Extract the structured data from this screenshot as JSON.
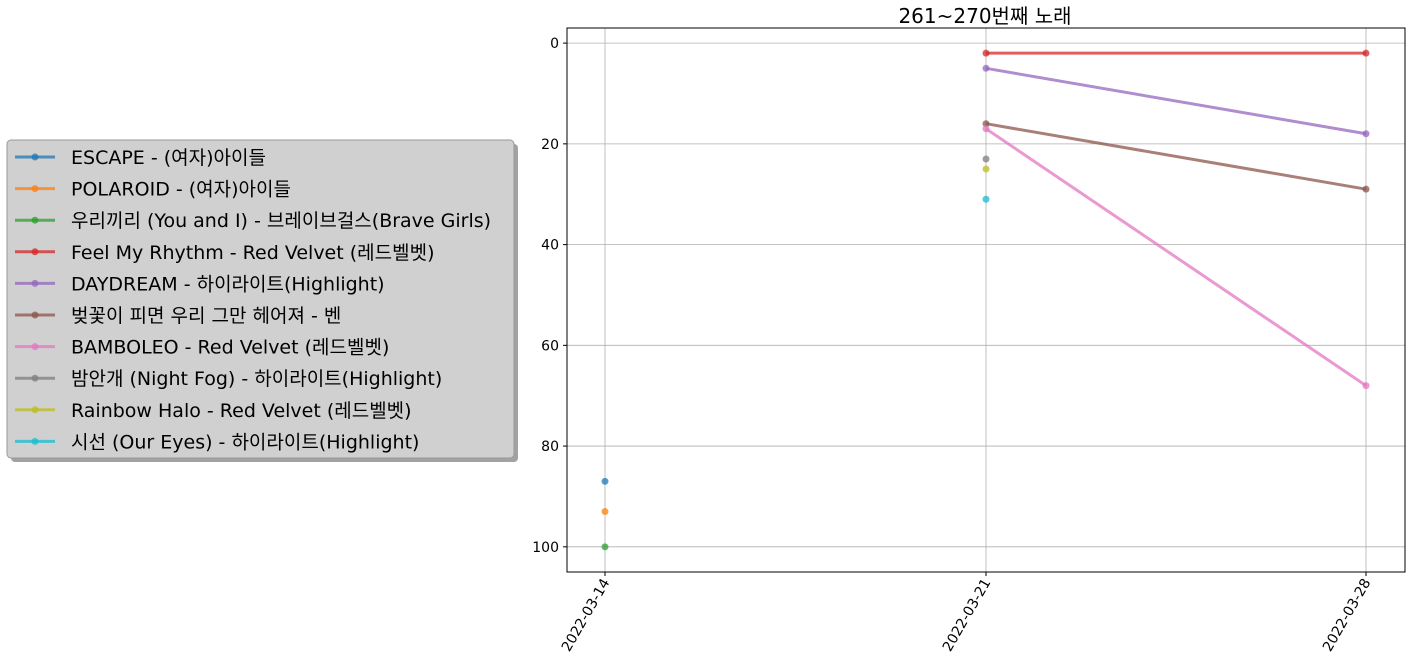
{
  "chart_data": {
    "type": "line",
    "title": "261~270번째 노래",
    "xlabel": "",
    "ylabel": "",
    "x": [
      "2022-03-14",
      "2022-03-21",
      "2022-03-28"
    ],
    "ylim": [
      105,
      -3
    ],
    "y_inverted": true,
    "yticks": [
      0,
      20,
      40,
      60,
      80,
      100
    ],
    "grid": true,
    "legend_position": "outside-left",
    "series": [
      {
        "name": "ESCAPE - (여자)아이들",
        "color": "#1f77b4",
        "values": [
          87,
          null,
          null
        ]
      },
      {
        "name": "POLAROID - (여자)아이들",
        "color": "#ff7f0e",
        "values": [
          93,
          null,
          null
        ]
      },
      {
        "name": "우리끼리 (You and I) - 브레이브걸스(Brave Girls)",
        "color": "#2ca02c",
        "values": [
          100,
          null,
          null
        ]
      },
      {
        "name": "Feel My Rhythm - Red Velvet (레드벨벳)",
        "color": "#d62728",
        "values": [
          null,
          2,
          2
        ]
      },
      {
        "name": "DAYDREAM - 하이라이트(Highlight)",
        "color": "#9467bd",
        "values": [
          null,
          5,
          18
        ]
      },
      {
        "name": "벚꽃이 피면 우리 그만 헤어져 - 벤",
        "color": "#8c564b",
        "values": [
          null,
          16,
          29
        ]
      },
      {
        "name": "BAMBOLEO - Red Velvet (레드벨벳)",
        "color": "#e377c2",
        "values": [
          null,
          17,
          68
        ]
      },
      {
        "name": "밤안개 (Night Fog) - 하이라이트(Highlight)",
        "color": "#7f7f7f",
        "values": [
          null,
          23,
          null
        ]
      },
      {
        "name": "Rainbow Halo - Red Velvet (레드벨벳)",
        "color": "#bcbd22",
        "values": [
          null,
          25,
          null
        ]
      },
      {
        "name": "시선 (Our Eyes) - 하이라이트(Highlight)",
        "color": "#17becf",
        "values": [
          null,
          31,
          null
        ]
      }
    ]
  }
}
